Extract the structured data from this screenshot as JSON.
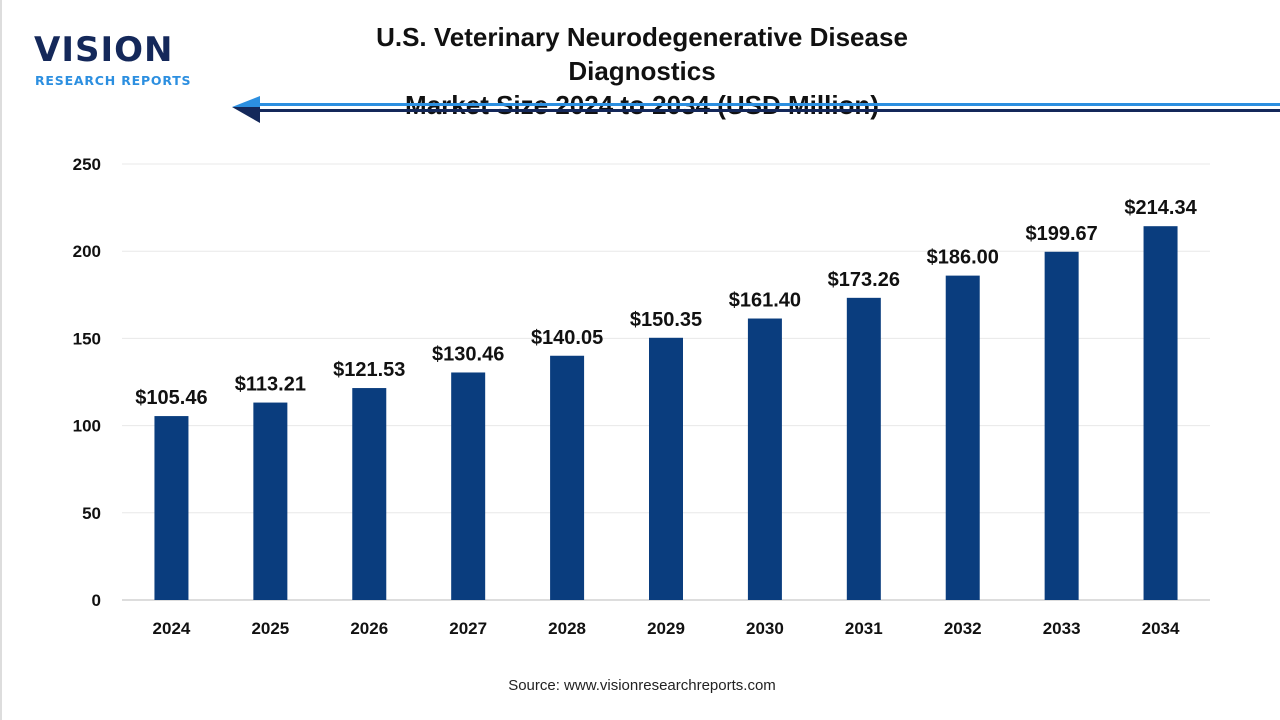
{
  "header": {
    "logo_text": "VISION",
    "logo_subtext": "RESEARCH REPORTS",
    "title_line1": "U.S. Veterinary Neurodegenerative Disease Diagnostics",
    "title_line2": "Market Size 2024 to 2034 (USD Million)"
  },
  "source": "Source: www.visionresearchreports.com",
  "colors": {
    "bar": "#0a3d7e",
    "accent": "#2c8fe0",
    "navy": "#14285a"
  },
  "chart_data": {
    "type": "bar",
    "title": "U.S. Veterinary Neurodegenerative Disease Diagnostics Market Size 2024 to 2034 (USD Million)",
    "categories": [
      "2024",
      "2025",
      "2026",
      "2027",
      "2028",
      "2029",
      "2030",
      "2031",
      "2032",
      "2033",
      "2034"
    ],
    "values": [
      105.46,
      113.21,
      121.53,
      130.46,
      140.05,
      150.35,
      161.4,
      173.26,
      186.0,
      199.67,
      214.34
    ],
    "data_labels": [
      "$105.46",
      "$113.21",
      "$121.53",
      "$130.46",
      "$140.05",
      "$150.35",
      "$161.40",
      "$173.26",
      "$186.00",
      "$199.67",
      "$214.34"
    ],
    "yticks": [
      "0",
      "50",
      "100",
      "150",
      "200",
      "250"
    ],
    "ylim": [
      0,
      250
    ],
    "xlabel": "",
    "ylabel": "",
    "grid": true
  }
}
